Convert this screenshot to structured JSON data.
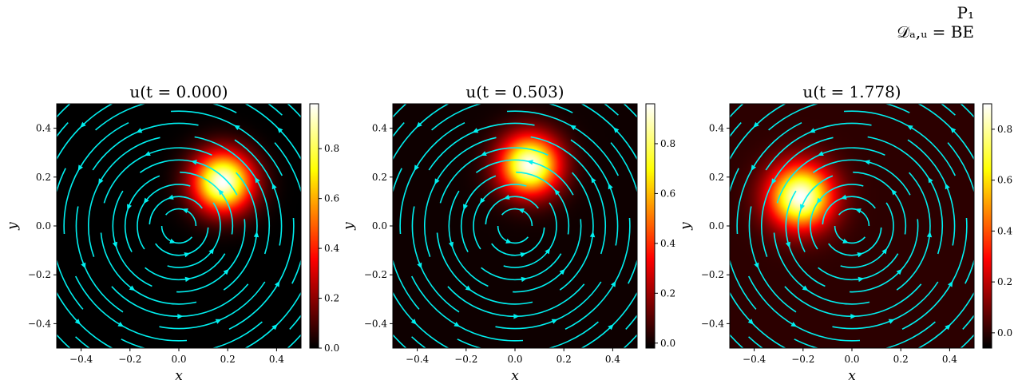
{
  "header": {
    "line1": "P₁",
    "line2": "𝒟ₐ,ᵤ = BE"
  },
  "colors": {
    "streamline": "#00f0f0",
    "colormap": "hot",
    "colormap_stops": [
      "#000000",
      "#8b0000",
      "#ff0000",
      "#ff8c00",
      "#ffff00",
      "#ffffff"
    ]
  },
  "chart_data": [
    {
      "type": "heatmap",
      "title": "u(t = 0.000)",
      "xlabel": "x",
      "ylabel": "y",
      "xlim": [
        -0.5,
        0.5
      ],
      "ylim": [
        -0.5,
        0.5
      ],
      "xticks": [
        "−0.4",
        "−0.2",
        "0.0",
        "0.2",
        "0.4"
      ],
      "yticks": [
        "−0.4",
        "−0.2",
        "0.0",
        "0.2",
        "0.4"
      ],
      "field": {
        "center_x": 0.18,
        "center_y": 0.18,
        "peak": 0.98,
        "sigma": 0.085
      },
      "colorbar": {
        "min": 0.0,
        "max": 0.98,
        "ticks": [
          "0.0",
          "0.2",
          "0.4",
          "0.6",
          "0.8"
        ]
      },
      "streamlines": "counter-clockwise rotation about (0, 0)"
    },
    {
      "type": "heatmap",
      "title": "u(t = 0.503)",
      "xlabel": "x",
      "ylabel": "y",
      "xlim": [
        -0.5,
        0.5
      ],
      "ylim": [
        -0.5,
        0.5
      ],
      "xticks": [
        "−0.4",
        "−0.2",
        "0.0",
        "0.2",
        "0.4"
      ],
      "yticks": [
        "−0.4",
        "−0.2",
        "0.0",
        "0.2",
        "0.4"
      ],
      "field": {
        "center_x": 0.06,
        "center_y": 0.25,
        "peak": 0.95,
        "sigma": 0.085
      },
      "colorbar": {
        "min": -0.02,
        "max": 0.96,
        "ticks": [
          "0.0",
          "0.2",
          "0.4",
          "0.6",
          "0.8"
        ]
      },
      "streamlines": "counter-clockwise rotation about (0, 0)"
    },
    {
      "type": "heatmap",
      "title": "u(t = 1.778)",
      "xlabel": "x",
      "ylabel": "y",
      "xlim": [
        -0.5,
        0.5
      ],
      "ylim": [
        -0.5,
        0.5
      ],
      "xticks": [
        "−0.4",
        "−0.2",
        "0.0",
        "0.2",
        "0.4"
      ],
      "yticks": [
        "−0.4",
        "−0.2",
        "0.0",
        "0.2",
        "0.4"
      ],
      "field": {
        "center_x": -0.21,
        "center_y": 0.12,
        "peak": 0.9,
        "sigma": 0.09
      },
      "colorbar": {
        "min": -0.06,
        "max": 0.9,
        "ticks": [
          "0.0",
          "0.2",
          "0.4",
          "0.6",
          "0.8"
        ]
      },
      "streamlines": "counter-clockwise rotation about (0, 0)"
    }
  ]
}
